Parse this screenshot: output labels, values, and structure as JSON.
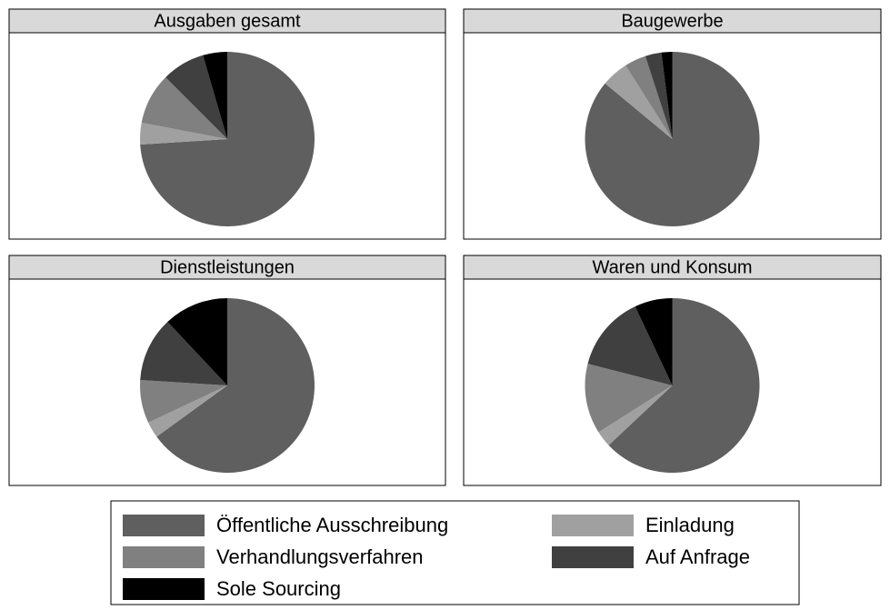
{
  "chart_data": [
    {
      "type": "pie",
      "title": "Ausgaben gesamt",
      "values": [
        74,
        4,
        9.5,
        8,
        4.5
      ]
    },
    {
      "type": "pie",
      "title": "Baugewerbe",
      "values": [
        86,
        5,
        4,
        3,
        2
      ]
    },
    {
      "type": "pie",
      "title": "Dienstleistungen",
      "values": [
        65,
        3,
        8,
        12,
        12
      ]
    },
    {
      "type": "pie",
      "title": "Waren und Konsum",
      "values": [
        63,
        3,
        13,
        14,
        7
      ]
    }
  ],
  "legend": {
    "labels": [
      "Öffentliche Ausschreibung",
      "Einladung",
      "Verhandlungsverfahren",
      "Auf Anfrage",
      "Sole Sourcing"
    ],
    "colors": [
      "#5f5f5f",
      "#a0a0a0",
      "#808080",
      "#404040",
      "#000000"
    ]
  }
}
